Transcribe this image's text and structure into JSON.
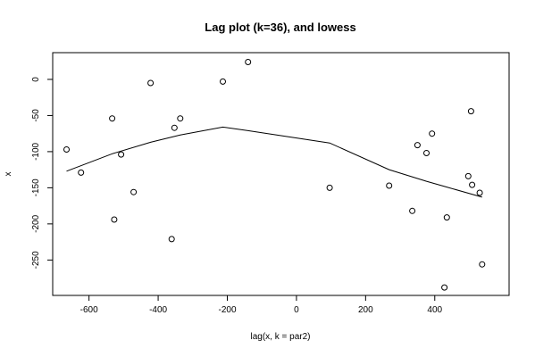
{
  "chart_data": {
    "type": "scatter",
    "title": "Lag plot (k=36), and lowess",
    "xlabel": "lag(x, k = par2)",
    "ylabel": "x",
    "xlim": [
      -705,
      615
    ],
    "ylim": [
      -299,
      37
    ],
    "xticks": [
      -600,
      -400,
      -200,
      0,
      200,
      400
    ],
    "yticks": [
      0,
      -50,
      -100,
      -150,
      -200,
      -250
    ],
    "xtick_labels": [
      "-600",
      "-400",
      "-200",
      "0",
      "200",
      "400"
    ],
    "ytick_labels": [
      "0",
      "-50",
      "-100",
      "-150",
      "-200",
      "-250"
    ],
    "grid": false,
    "points": [
      [
        -665,
        -97
      ],
      [
        -623,
        -129
      ],
      [
        -533,
        -54
      ],
      [
        -527,
        -194
      ],
      [
        -507,
        -104
      ],
      [
        -471,
        -156
      ],
      [
        -422,
        -5
      ],
      [
        -361,
        -221
      ],
      [
        -353,
        -67
      ],
      [
        -336,
        -54
      ],
      [
        -213,
        -3
      ],
      [
        -140,
        24
      ],
      [
        96,
        -150
      ],
      [
        268,
        -147
      ],
      [
        335,
        -182
      ],
      [
        350,
        -91
      ],
      [
        376,
        -102
      ],
      [
        392,
        -75
      ],
      [
        428,
        -288
      ],
      [
        435,
        -191
      ],
      [
        497,
        -134
      ],
      [
        505,
        -44
      ],
      [
        508,
        -146
      ],
      [
        530,
        -157
      ],
      [
        537,
        -256
      ]
    ],
    "lowess": [
      [
        -665,
        -127
      ],
      [
        -533,
        -103
      ],
      [
        -422,
        -87
      ],
      [
        -336,
        -77
      ],
      [
        -213,
        -66
      ],
      [
        -140,
        -71
      ],
      [
        96,
        -88
      ],
      [
        268,
        -125
      ],
      [
        376,
        -141
      ],
      [
        435,
        -149
      ],
      [
        537,
        -163
      ]
    ]
  }
}
